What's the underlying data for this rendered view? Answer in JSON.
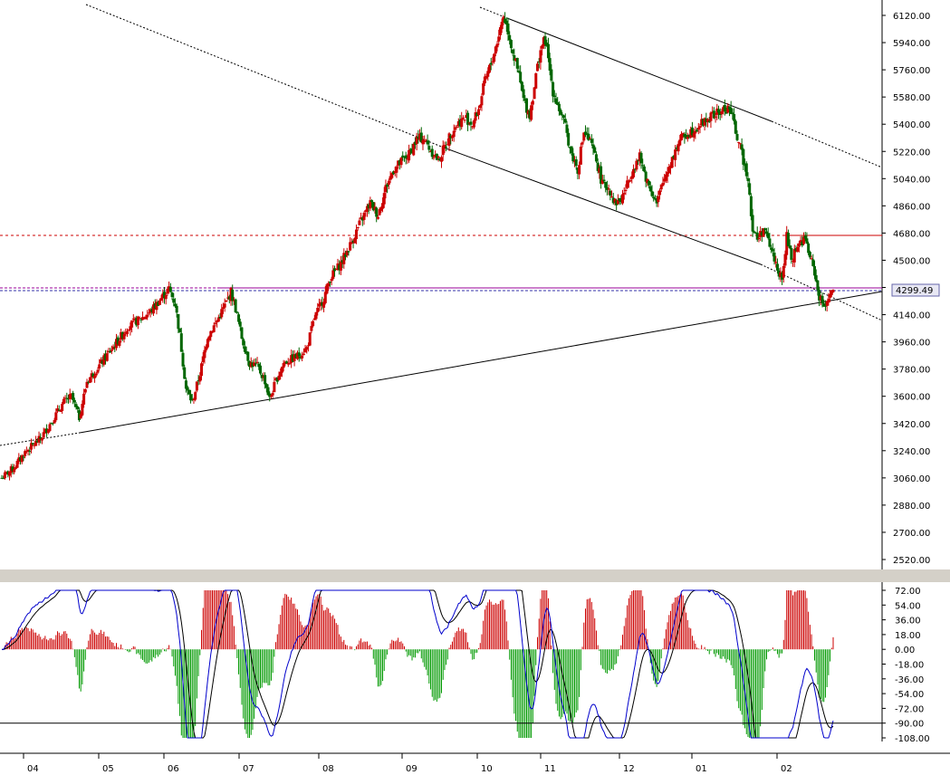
{
  "colors": {
    "background": "#d4d0c8",
    "panel": "#ffffff",
    "bullish": "#cc0000",
    "bearish": "#006600",
    "macd_line": "#0000cc",
    "signal_line": "#000000",
    "hist_pos": "#cc0000",
    "hist_neg": "#009900",
    "level_red": "#cc0000",
    "level_magenta": "#990099",
    "level_blue": "#3333aa"
  },
  "chart_data": [
    {
      "type": "candlestick",
      "title": "",
      "ylim": [
        2460,
        6180
      ],
      "y_ticks": [
        "6120.00",
        "5940.00",
        "5760.00",
        "5580.00",
        "5400.00",
        "5220.00",
        "5040.00",
        "4860.00",
        "4680.00",
        "4500.00",
        "4320.00",
        "4140.00",
        "3960.00",
        "3780.00",
        "3600.00",
        "3420.00",
        "3240.00",
        "3060.00",
        "2880.00",
        "2700.00",
        "2520.00"
      ],
      "x_ticks": [
        "04",
        "05",
        "06",
        "07",
        "08",
        "09",
        "10",
        "11",
        "12",
        "01",
        "02"
      ],
      "last_price_label": "4299.49",
      "anchors": [
        [
          0,
          3060
        ],
        [
          8,
          3130
        ],
        [
          15,
          3230
        ],
        [
          25,
          3320
        ],
        [
          35,
          3480
        ],
        [
          40,
          3560
        ],
        [
          45,
          3600
        ],
        [
          50,
          3460
        ],
        [
          55,
          3700
        ],
        [
          62,
          3790
        ],
        [
          70,
          3900
        ],
        [
          78,
          4010
        ],
        [
          82,
          4070
        ],
        [
          88,
          4100
        ],
        [
          96,
          4160
        ],
        [
          103,
          4250
        ],
        [
          108,
          4310
        ],
        [
          112,
          4210
        ],
        [
          115,
          4000
        ],
        [
          119,
          3650
        ],
        [
          123,
          3560
        ],
        [
          128,
          3750
        ],
        [
          133,
          4000
        ],
        [
          138,
          4080
        ],
        [
          144,
          4200
        ],
        [
          148,
          4290
        ],
        [
          151,
          4180
        ],
        [
          155,
          3990
        ],
        [
          160,
          3820
        ],
        [
          165,
          3800
        ],
        [
          170,
          3700
        ],
        [
          173,
          3580
        ],
        [
          177,
          3700
        ],
        [
          182,
          3820
        ],
        [
          188,
          3850
        ],
        [
          193,
          3880
        ],
        [
          197,
          3920
        ],
        [
          202,
          4120
        ],
        [
          208,
          4250
        ],
        [
          212,
          4380
        ],
        [
          219,
          4480
        ],
        [
          225,
          4600
        ],
        [
          232,
          4760
        ],
        [
          238,
          4880
        ],
        [
          243,
          4800
        ],
        [
          248,
          4980
        ],
        [
          253,
          5100
        ],
        [
          258,
          5150
        ],
        [
          263,
          5200
        ],
        [
          268,
          5300
        ],
        [
          272,
          5310
        ],
        [
          277,
          5230
        ],
        [
          282,
          5160
        ],
        [
          286,
          5250
        ],
        [
          291,
          5360
        ],
        [
          296,
          5420
        ],
        [
          300,
          5440
        ],
        [
          304,
          5400
        ],
        [
          308,
          5500
        ],
        [
          312,
          5680
        ],
        [
          316,
          5800
        ],
        [
          320,
          5950
        ],
        [
          324,
          6120
        ],
        [
          327,
          6020
        ],
        [
          330,
          5880
        ],
        [
          334,
          5720
        ],
        [
          337,
          5560
        ],
        [
          341,
          5460
        ],
        [
          345,
          5720
        ],
        [
          348,
          5900
        ],
        [
          351,
          5960
        ],
        [
          353,
          5820
        ],
        [
          356,
          5620
        ],
        [
          360,
          5500
        ],
        [
          364,
          5380
        ],
        [
          368,
          5200
        ],
        [
          372,
          5100
        ],
        [
          376,
          5350
        ],
        [
          380,
          5280
        ],
        [
          384,
          5160
        ],
        [
          388,
          5000
        ],
        [
          392,
          4980
        ],
        [
          396,
          4880
        ],
        [
          400,
          4900
        ],
        [
          404,
          5000
        ],
        [
          408,
          5120
        ],
        [
          412,
          5180
        ],
        [
          416,
          5050
        ],
        [
          420,
          4950
        ],
        [
          423,
          4870
        ],
        [
          426,
          4980
        ],
        [
          430,
          5100
        ],
        [
          434,
          5200
        ],
        [
          438,
          5300
        ],
        [
          442,
          5330
        ],
        [
          446,
          5360
        ],
        [
          450,
          5390
        ],
        [
          454,
          5420
        ],
        [
          458,
          5450
        ],
        [
          462,
          5470
        ],
        [
          466,
          5490
        ],
        [
          470,
          5510
        ],
        [
          474,
          5360
        ],
        [
          478,
          5200
        ],
        [
          482,
          5050
        ],
        [
          485,
          4700
        ],
        [
          488,
          4640
        ],
        [
          492,
          4710
        ],
        [
          496,
          4600
        ],
        [
          500,
          4480
        ],
        [
          504,
          4360
        ],
        [
          507,
          4660
        ],
        [
          510,
          4500
        ],
        [
          513,
          4580
        ],
        [
          516,
          4620
        ],
        [
          519,
          4640
        ],
        [
          522,
          4520
        ],
        [
          525,
          4420
        ],
        [
          528,
          4250
        ],
        [
          531,
          4200
        ],
        [
          534,
          4260
        ],
        [
          537,
          4300
        ]
      ],
      "macd": {
        "ylim": [
          -112,
          78
        ],
        "y_ticks": [
          "72.00",
          "54.00",
          "36.00",
          "18.00",
          "0.00",
          "-18.00",
          "-36.00",
          "-54.00",
          "-72.00",
          "-90.00",
          "-108.00"
        ],
        "reference_level": -90
      }
    }
  ]
}
